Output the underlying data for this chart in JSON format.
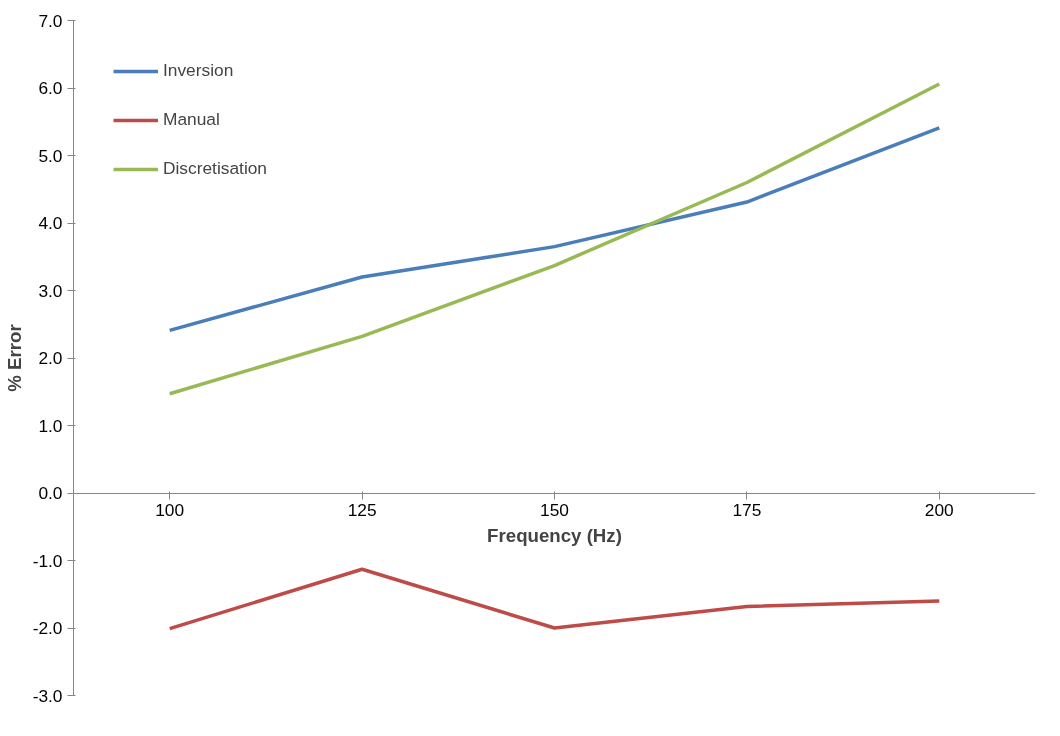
{
  "chart_data": {
    "type": "line",
    "xlabel": "Frequency (Hz)",
    "ylabel": "% Error",
    "categories": [
      "100",
      "125",
      "150",
      "175",
      "200"
    ],
    "series": [
      {
        "name": "Inversion",
        "color": "#4a7ebb",
        "values": [
          2.41,
          3.2,
          3.65,
          4.31,
          5.41
        ]
      },
      {
        "name": "Manual",
        "color": "#be4b48",
        "values": [
          -2.01,
          -1.13,
          -2.0,
          -1.68,
          -1.6
        ]
      },
      {
        "name": "Discretisation",
        "color": "#98b954",
        "values": [
          1.47,
          2.32,
          3.37,
          4.6,
          6.06
        ]
      }
    ],
    "ylim": [
      -3,
      7
    ],
    "yticks": [
      {
        "value": -3,
        "label": "-3.0"
      },
      {
        "value": -2,
        "label": "-2.0"
      },
      {
        "value": -1,
        "label": "-1.0"
      },
      {
        "value": 0,
        "label": "0.0"
      },
      {
        "value": 1,
        "label": "1.0"
      },
      {
        "value": 2,
        "label": "2.0"
      },
      {
        "value": 3,
        "label": "3.0"
      },
      {
        "value": 4,
        "label": "4.0"
      },
      {
        "value": 5,
        "label": "5.0"
      },
      {
        "value": 6,
        "label": "6.0"
      },
      {
        "value": 7,
        "label": "7.0"
      }
    ],
    "grid": false,
    "legend": "top left",
    "marker": "none",
    "line_style": "solid"
  }
}
